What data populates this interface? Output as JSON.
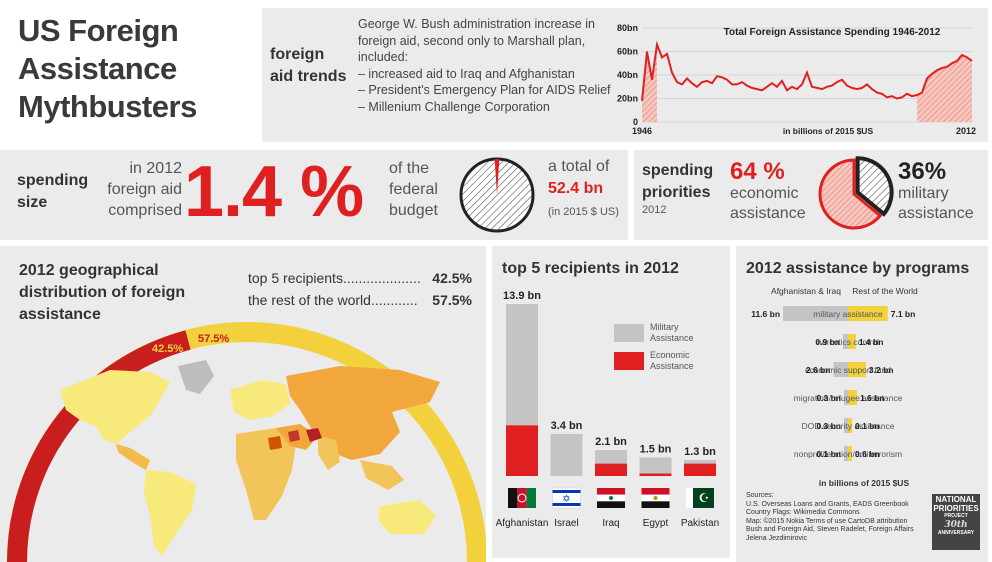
{
  "title": {
    "line1": "US Foreign",
    "line2": "Assistance",
    "line3": "Mythbusters"
  },
  "trends": {
    "heading": "foreign aid trends",
    "text": [
      "George W. Bush administration increase in",
      "foreign aid, second only to Marshall plan,",
      "included:",
      "– increased aid to Iraq and Afghanistan",
      "– President's Emergency Plan for AIDS Relief",
      "– Millenium Challenge Corporation"
    ]
  },
  "spending_size": {
    "heading": "spending size",
    "pre_text": "in 2012 foreign aid comprised",
    "big_value": "1.4 %",
    "post_text": "of the federal budget",
    "total_label": "a total of",
    "total_value": "52.4 bn",
    "total_unit": "(in 2015 $ US)"
  },
  "priorities": {
    "heading": "spending priorities",
    "year": "2012",
    "economic_pct": "64 %",
    "economic_label": "economic assistance",
    "military_pct": "36%",
    "military_label": "military assistance"
  },
  "geo": {
    "heading": "2012 geographical distribution of foreign assistance",
    "rows": [
      {
        "label": "top 5 recipients....................",
        "value": "42.5%"
      },
      {
        "label": "the rest of the world............",
        "value": "57.5%"
      }
    ],
    "arc_labels": {
      "top5": "42.5%",
      "rest": "57.5%"
    }
  },
  "top5": {
    "heading": "top 5 recipients in 2012"
  },
  "programs": {
    "heading": "2012 assistance by programs"
  },
  "sources": [
    "Sources:",
    "U.S. Overseas Loans and Grants, EADS Greenbook",
    "Country Flags: Wikimedia Commons",
    "Map: ©2015 Nokia Terms of use CartoDB attribution",
    "Bush and Foreign Aid, Steven Radelet, Foreign Affairs",
    "Jelena Jezdimirovic"
  ],
  "logo": {
    "line1": "NATIONAL",
    "line2": "PRIORITIES",
    "line3": "PROJECT",
    "line4": "30th",
    "line5": "ANNIVERSARY"
  },
  "colors": {
    "red": "#e02020",
    "grey": "#c4c4c4",
    "yellow": "#f2d13c",
    "dark": "#222222"
  },
  "chart_data": [
    {
      "id": "trend",
      "type": "line",
      "title": "Total Foreign Assistance Spending 1946-2012",
      "xlabel": "in billions of 2015 $US",
      "ylabel": "",
      "x_tick_labels": [
        "1946",
        "2012"
      ],
      "y_tick_labels": [
        "0",
        "20bn",
        "40bn",
        "60bn",
        "80bn"
      ],
      "xlim": [
        1946,
        2012
      ],
      "ylim": [
        0,
        80
      ],
      "grid": true,
      "highlight_ranges": [
        [
          1946,
          1949
        ],
        [
          2001,
          2012
        ]
      ],
      "x": [
        1946,
        1947,
        1948,
        1949,
        1950,
        1951,
        1952,
        1953,
        1954,
        1955,
        1956,
        1957,
        1958,
        1959,
        1960,
        1961,
        1962,
        1963,
        1964,
        1965,
        1966,
        1967,
        1968,
        1969,
        1970,
        1971,
        1972,
        1973,
        1974,
        1975,
        1976,
        1977,
        1978,
        1979,
        1980,
        1981,
        1982,
        1983,
        1984,
        1985,
        1986,
        1987,
        1988,
        1989,
        1990,
        1991,
        1992,
        1993,
        1994,
        1995,
        1996,
        1997,
        1998,
        1999,
        2000,
        2001,
        2002,
        2003,
        2004,
        2005,
        2006,
        2007,
        2008,
        2009,
        2010,
        2011,
        2012
      ],
      "values": [
        18,
        60,
        36,
        66,
        55,
        58,
        42,
        34,
        32,
        37,
        33,
        30,
        34,
        35,
        33,
        39,
        38,
        36,
        32,
        32,
        34,
        31,
        29,
        28,
        27,
        30,
        33,
        30,
        35,
        27,
        30,
        28,
        32,
        42,
        30,
        29,
        28,
        30,
        31,
        34,
        36,
        31,
        29,
        28,
        29,
        32,
        28,
        25,
        24,
        21,
        22,
        20,
        21,
        24,
        22,
        23,
        25,
        37,
        41,
        44,
        46,
        47,
        50,
        52,
        57,
        55,
        52
      ]
    },
    {
      "id": "budget_share",
      "type": "pie",
      "slices": [
        {
          "label": "foreign aid",
          "value": 1.4
        },
        {
          "label": "other",
          "value": 98.6
        }
      ]
    },
    {
      "id": "priorities",
      "type": "pie",
      "slices": [
        {
          "label": "economic assistance",
          "value": 64
        },
        {
          "label": "military assistance",
          "value": 36
        }
      ]
    },
    {
      "id": "top5",
      "type": "bar",
      "categories": [
        "Afghanistan",
        "Israel",
        "Iraq",
        "Egypt",
        "Pakistan"
      ],
      "value_labels": [
        "13.9 bn",
        "3.4 bn",
        "2.1 bn",
        "1.5 bn",
        "1.3 bn"
      ],
      "series": [
        {
          "name": "Military Assistance",
          "values": [
            9.8,
            3.4,
            1.1,
            1.3,
            0.3
          ]
        },
        {
          "name": "Economic Assistance",
          "values": [
            4.1,
            0.0,
            1.0,
            0.2,
            1.0
          ]
        }
      ],
      "flags": [
        "afghanistan-flag",
        "israel-flag",
        "iraq-flag",
        "egypt-flag",
        "pakistan-flag"
      ]
    },
    {
      "id": "programs",
      "type": "bar",
      "orientation": "diverging",
      "left_label": "Afghanistan & Iraq",
      "right_label": "Rest of the World",
      "xlabel": "in billions of 2015 $US",
      "categories": [
        "military assistance",
        "narcotics control",
        "economic support fund",
        "migration/refugee assistance",
        "DOD security assistance",
        "nonproliferation/antiterrorism"
      ],
      "series": [
        {
          "name": "Afghanistan & Iraq",
          "values": [
            11.6,
            0.9,
            2.6,
            0.3,
            0.3,
            0.1
          ],
          "labels": [
            "11.6 bn",
            "0.9 bn",
            "2.6 bn",
            "0.3 bn",
            "0.3 bn",
            "0.1 bn"
          ]
        },
        {
          "name": "Rest of the World",
          "values": [
            7.1,
            1.4,
            3.2,
            1.6,
            0.1,
            0.6
          ],
          "labels": [
            "7.1 bn",
            "1.4 bn",
            "3.2 bn",
            "1.6 bn",
            "0.1 bn",
            "0.6 bn"
          ]
        }
      ]
    }
  ]
}
